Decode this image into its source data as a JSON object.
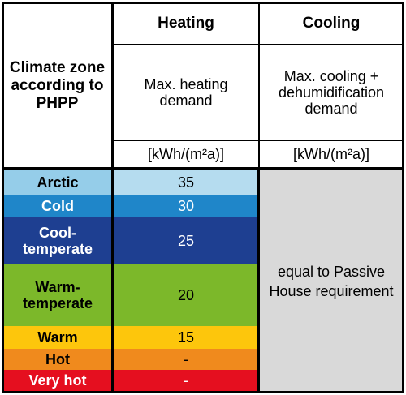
{
  "header": {
    "zone_label": "Climate zone according to PHPP",
    "heating": {
      "title": "Heating",
      "description": "Max. heating demand",
      "unit": "[kWh/(m²a)]"
    },
    "cooling": {
      "title": "Cooling",
      "description": "Max. cooling + dehumidification demand",
      "unit": "[kWh/(m²a)]"
    }
  },
  "rows": [
    {
      "zone": "Arctic",
      "heating": "35",
      "zone_color": "#95cde9",
      "value_color": "#b5dcef"
    },
    {
      "zone": "Cold",
      "heating": "30",
      "zone_color": "#1f86c9",
      "value_color": "#1f86c9"
    },
    {
      "zone": "Cool-temperate",
      "heating": "25",
      "zone_color": "#1e3f91",
      "value_color": "#1e3f91"
    },
    {
      "zone": "Warm-temperate",
      "heating": "20",
      "zone_color": "#7cb82a",
      "value_color": "#7cb82a"
    },
    {
      "zone": "Warm",
      "heating": "15",
      "zone_color": "#fdc60c",
      "value_color": "#fdc60c"
    },
    {
      "zone": "Hot",
      "heating": "-",
      "zone_color": "#f08a1d",
      "value_color": "#f08a1d"
    },
    {
      "zone": "Very hot",
      "heating": "-",
      "zone_color": "#e50f1f",
      "value_color": "#e50f1f"
    }
  ],
  "cooling_note": "equal to Passive House requirement",
  "colors": {
    "cooling_fill": "#d9d9d9",
    "border": "#000000"
  }
}
